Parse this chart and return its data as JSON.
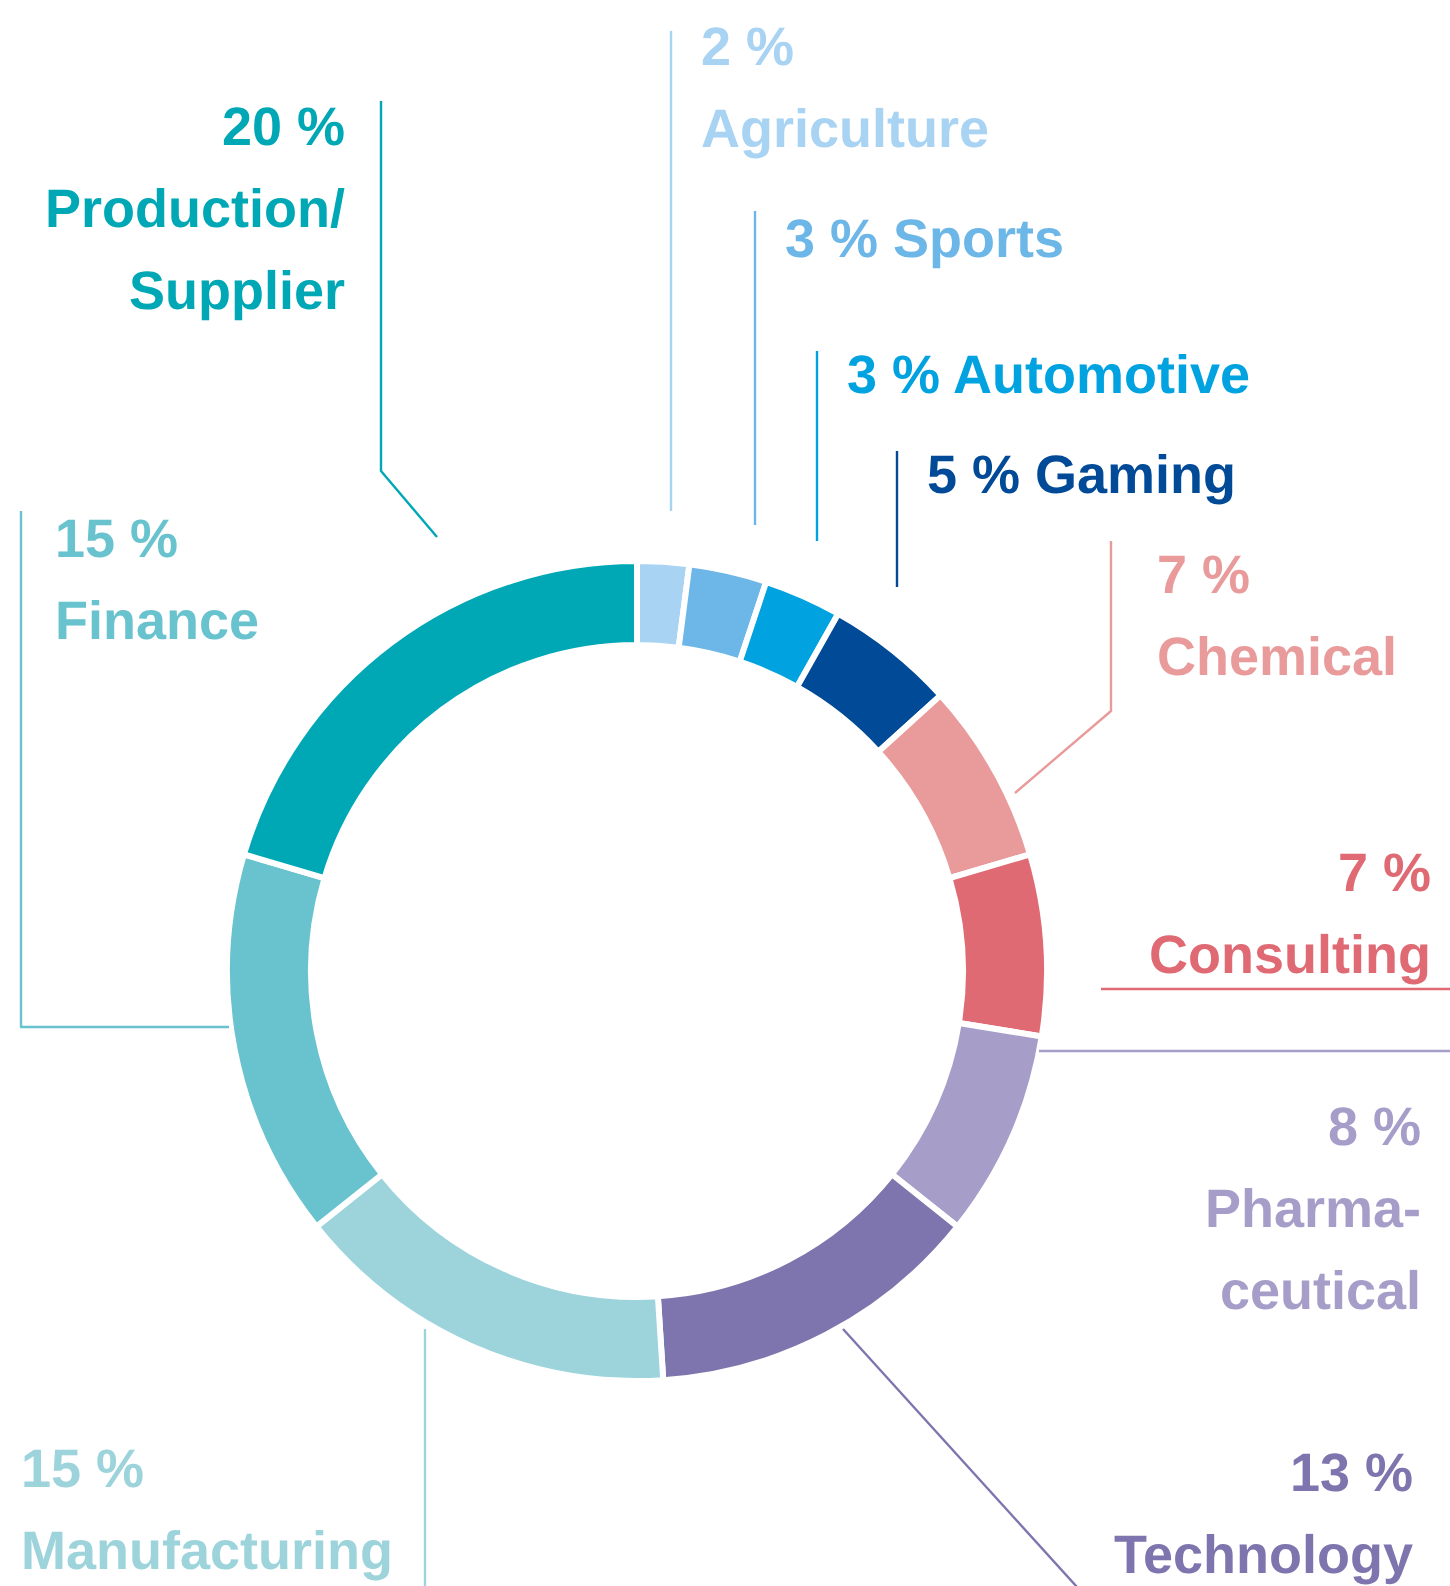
{
  "chart_data": {
    "type": "donut",
    "categories": [
      "Agriculture",
      "Sports",
      "Automotive",
      "Gaming",
      "Chemical",
      "Consulting",
      "Pharma-\nceutical",
      "Technology",
      "Manufacturing",
      "Finance",
      "Production/\nSupplier"
    ],
    "values": [
      2,
      3,
      3,
      5,
      7,
      7,
      8,
      13,
      15,
      15,
      20
    ],
    "colors": [
      "#a9d3f2",
      "#6db7e8",
      "#00a3e0",
      "#004a97",
      "#e99b9b",
      "#e06a73",
      "#a69ec9",
      "#7f75ae",
      "#9dd4dc",
      "#69c3ce",
      "#00a8b6"
    ],
    "value_labels": [
      "2 %",
      "3 %",
      "3 %",
      "5 %",
      "7 %",
      "7 %",
      "8 %",
      "13 %",
      "15 %",
      "15 %",
      "20 %"
    ]
  }
}
